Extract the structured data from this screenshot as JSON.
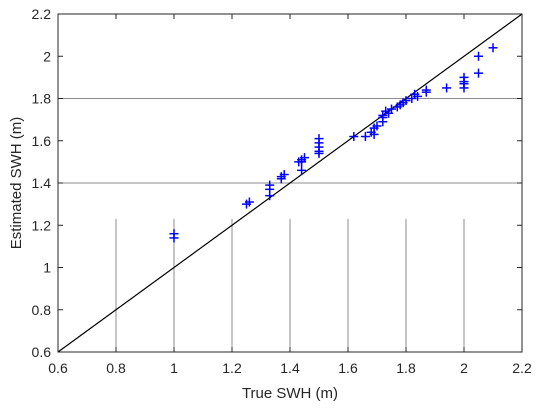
{
  "chart_data": {
    "type": "scatter",
    "title": "",
    "xlabel": "True SWH (m)",
    "ylabel": "Estimated SWH (m)",
    "xlim": [
      0.6,
      2.2
    ],
    "ylim": [
      0.6,
      2.2
    ],
    "xticks": [
      "0.6",
      "0.8",
      "1",
      "1.2",
      "1.4",
      "1.6",
      "1.8",
      "2",
      "2.2"
    ],
    "yticks": [
      "0.6",
      "0.8",
      "1",
      "1.2",
      "1.4",
      "1.6",
      "1.8",
      "2",
      "2.2"
    ],
    "grid": "partial",
    "marker": "+",
    "marker_color": "#0000ff",
    "reference_line": {
      "from": [
        0.6,
        0.6
      ],
      "to": [
        2.2,
        2.2
      ],
      "color": "#000000"
    },
    "points": [
      {
        "x": 1.0,
        "y": 1.14
      },
      {
        "x": 1.0,
        "y": 1.16
      },
      {
        "x": 1.25,
        "y": 1.3
      },
      {
        "x": 1.26,
        "y": 1.31
      },
      {
        "x": 1.33,
        "y": 1.34
      },
      {
        "x": 1.33,
        "y": 1.37
      },
      {
        "x": 1.33,
        "y": 1.39
      },
      {
        "x": 1.37,
        "y": 1.42
      },
      {
        "x": 1.37,
        "y": 1.43
      },
      {
        "x": 1.38,
        "y": 1.44
      },
      {
        "x": 1.44,
        "y": 1.46
      },
      {
        "x": 1.44,
        "y": 1.5
      },
      {
        "x": 1.44,
        "y": 1.51
      },
      {
        "x": 1.45,
        "y": 1.52
      },
      {
        "x": 1.43,
        "y": 1.5
      },
      {
        "x": 1.5,
        "y": 1.54
      },
      {
        "x": 1.5,
        "y": 1.55
      },
      {
        "x": 1.5,
        "y": 1.57
      },
      {
        "x": 1.5,
        "y": 1.59
      },
      {
        "x": 1.5,
        "y": 1.61
      },
      {
        "x": 1.62,
        "y": 1.62
      },
      {
        "x": 1.66,
        "y": 1.62
      },
      {
        "x": 1.68,
        "y": 1.64
      },
      {
        "x": 1.69,
        "y": 1.63
      },
      {
        "x": 1.69,
        "y": 1.66
      },
      {
        "x": 1.7,
        "y": 1.67
      },
      {
        "x": 1.72,
        "y": 1.69
      },
      {
        "x": 1.72,
        "y": 1.71
      },
      {
        "x": 1.72,
        "y": 1.72
      },
      {
        "x": 1.73,
        "y": 1.74
      },
      {
        "x": 1.74,
        "y": 1.73
      },
      {
        "x": 1.75,
        "y": 1.75
      },
      {
        "x": 1.77,
        "y": 1.76
      },
      {
        "x": 1.78,
        "y": 1.77
      },
      {
        "x": 1.79,
        "y": 1.78
      },
      {
        "x": 1.8,
        "y": 1.79
      },
      {
        "x": 1.82,
        "y": 1.8
      },
      {
        "x": 1.83,
        "y": 1.82
      },
      {
        "x": 1.84,
        "y": 1.81
      },
      {
        "x": 1.87,
        "y": 1.83
      },
      {
        "x": 1.87,
        "y": 1.84
      },
      {
        "x": 1.94,
        "y": 1.85
      },
      {
        "x": 2.0,
        "y": 1.85
      },
      {
        "x": 2.0,
        "y": 1.87
      },
      {
        "x": 2.0,
        "y": 1.88
      },
      {
        "x": 2.0,
        "y": 1.9
      },
      {
        "x": 2.05,
        "y": 1.92
      },
      {
        "x": 2.05,
        "y": 2.0
      },
      {
        "x": 2.1,
        "y": 2.04
      }
    ]
  }
}
